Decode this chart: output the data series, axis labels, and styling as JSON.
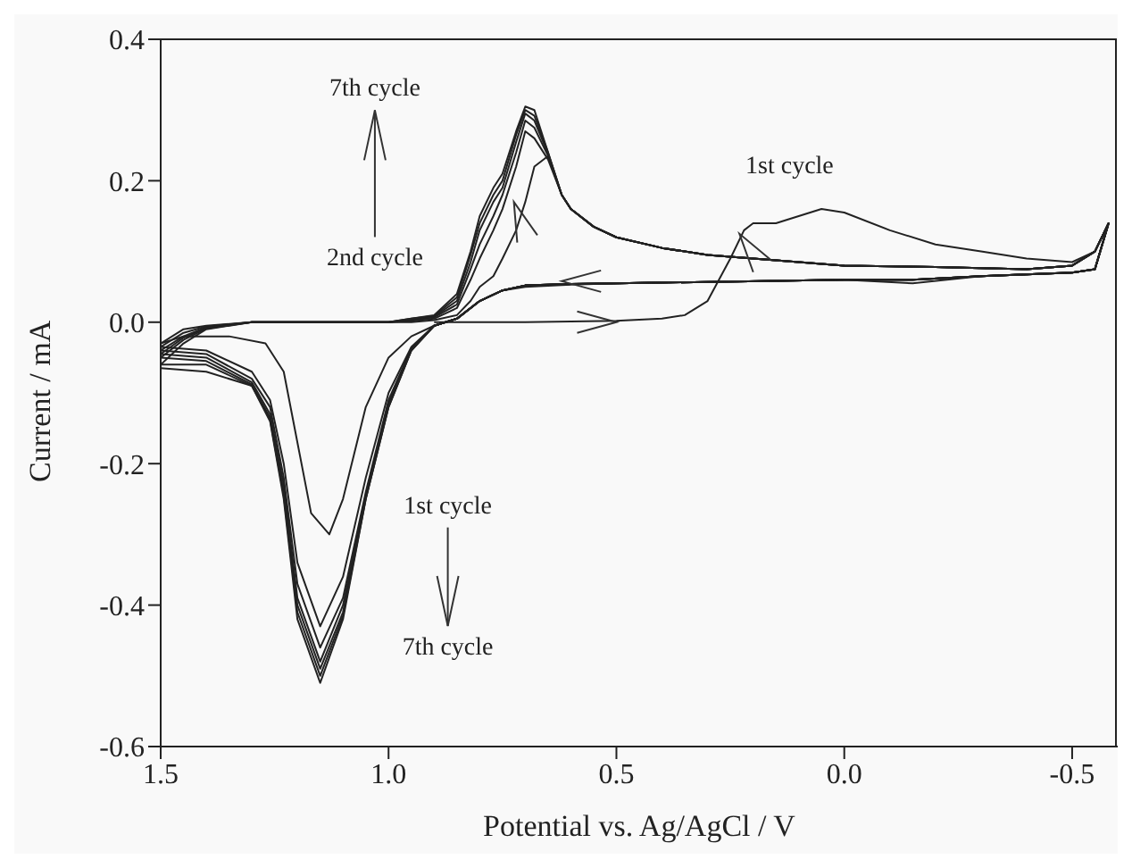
{
  "chart_data": {
    "type": "line",
    "xlabel": "Potential vs. Ag/AgCl / V",
    "ylabel": "Current / mA",
    "xlim": [
      1.5,
      -0.6
    ],
    "xticks": [
      1.5,
      {
        "value": 1.0,
        "label": "1.0"
      },
      0.5,
      {
        "value": 0.0,
        "label": "0.0"
      },
      -0.5
    ],
    "ylim": [
      -0.6,
      0.4
    ],
    "yticks": [
      -0.6,
      -0.4,
      -0.2,
      {
        "value": 0.0,
        "label": "0.0"
      },
      0.2,
      0.4
    ],
    "grid": false,
    "marker": "none",
    "line_style": "solid",
    "x": [
      1.5,
      1.45,
      1.4,
      1.3,
      1.2,
      1.0,
      0.95,
      0.9,
      0.85,
      0.82,
      0.8,
      0.77,
      0.75,
      0.72,
      0.7,
      0.68,
      0.65,
      0.62,
      0.6,
      0.55,
      0.5,
      0.4,
      0.3,
      0.2,
      0.1,
      0,
      -0.2,
      -0.4,
      -0.5,
      -0.55,
      -0.58,
      -0.55,
      -0.5,
      -0.3,
      -0.15,
      0,
      0.3,
      0.5,
      0.6,
      0.7,
      0.75,
      0.8,
      0.85,
      0.9,
      0.95,
      1.0,
      1.05,
      1.1,
      1.15,
      1.2,
      1.23,
      1.26,
      1.3,
      1.4,
      1.5
    ],
    "series": [
      {
        "color": "#222222",
        "x": [
          0.9,
          0.7,
          0.5,
          0.4,
          0.35,
          0.3,
          0.25,
          0.22,
          0.2,
          0.15,
          0.1,
          0.05,
          0,
          -0.1,
          -0.2,
          -0.3,
          -0.4,
          -0.5,
          -0.55,
          -0.58,
          -0.55,
          -0.5,
          -0.3,
          -0.15,
          0,
          0.3,
          0.5,
          0.6,
          0.7,
          0.75,
          0.8,
          0.85,
          0.9,
          0.95,
          1.0,
          1.05,
          1.1,
          1.13,
          1.17,
          1.2,
          1.23,
          1.27,
          1.35,
          1.45,
          1.5
        ],
        "values": [
          0,
          0,
          0.002,
          0.005,
          0.01,
          0.03,
          0.09,
          0.13,
          0.14,
          0.14,
          0.15,
          0.16,
          0.155,
          0.13,
          0.11,
          0.1,
          0.09,
          0.085,
          0.1,
          0.14,
          0.075,
          0.07,
          0.065,
          0.055,
          0.06,
          0.057,
          0.055,
          0.053,
          0.05,
          0.045,
          0.03,
          0.005,
          -0.005,
          -0.02,
          -0.05,
          -0.12,
          -0.25,
          -0.3,
          -0.27,
          -0.17,
          -0.07,
          -0.03,
          -0.02,
          -0.02,
          -0.03
        ]
      },
      {
        "color": "#222222",
        "values": [
          -0.03,
          -0.01,
          -0.005,
          0,
          0,
          0,
          0,
          0.003,
          0.01,
          0.03,
          0.05,
          0.065,
          0.09,
          0.13,
          0.17,
          0.22,
          0.235,
          0.18,
          0.16,
          0.135,
          0.12,
          0.105,
          0.095,
          0.09,
          0.085,
          0.08,
          0.078,
          0.075,
          0.08,
          0.1,
          0.14,
          0.075,
          0.07,
          0.065,
          0.06,
          0.06,
          0.057,
          0.055,
          0.054,
          0.052,
          0.045,
          0.03,
          0.005,
          -0.005,
          -0.035,
          -0.1,
          -0.22,
          -0.36,
          -0.43,
          -0.34,
          -0.2,
          -0.11,
          -0.07,
          -0.04,
          -0.035
        ]
      },
      {
        "color": "#222222",
        "values": [
          -0.035,
          -0.015,
          -0.006,
          0,
          0,
          0,
          0.002,
          0.005,
          0.02,
          0.06,
          0.09,
          0.13,
          0.16,
          0.22,
          0.27,
          0.26,
          0.23,
          0.18,
          0.16,
          0.135,
          0.12,
          0.105,
          0.095,
          0.09,
          0.085,
          0.08,
          0.078,
          0.075,
          0.08,
          0.1,
          0.14,
          0.075,
          0.07,
          0.065,
          0.06,
          0.06,
          0.057,
          0.055,
          0.054,
          0.052,
          0.045,
          0.03,
          0.005,
          -0.005,
          -0.037,
          -0.11,
          -0.24,
          -0.39,
          -0.46,
          -0.37,
          -0.22,
          -0.12,
          -0.08,
          -0.045,
          -0.04
        ]
      },
      {
        "color": "#222222",
        "values": [
          -0.04,
          -0.02,
          -0.007,
          0,
          0,
          0,
          0.003,
          0.007,
          0.025,
          0.075,
          0.11,
          0.15,
          0.18,
          0.24,
          0.285,
          0.275,
          0.235,
          0.18,
          0.16,
          0.135,
          0.12,
          0.105,
          0.095,
          0.09,
          0.085,
          0.08,
          0.078,
          0.075,
          0.08,
          0.1,
          0.14,
          0.075,
          0.07,
          0.065,
          0.06,
          0.06,
          0.057,
          0.055,
          0.054,
          0.052,
          0.045,
          0.03,
          0.005,
          -0.005,
          -0.038,
          -0.115,
          -0.245,
          -0.4,
          -0.48,
          -0.39,
          -0.23,
          -0.13,
          -0.085,
          -0.05,
          -0.045
        ]
      },
      {
        "color": "#222222",
        "values": [
          -0.045,
          -0.022,
          -0.008,
          0,
          0,
          0,
          0.004,
          0.008,
          0.03,
          0.085,
          0.13,
          0.17,
          0.19,
          0.255,
          0.295,
          0.285,
          0.238,
          0.18,
          0.16,
          0.135,
          0.12,
          0.105,
          0.095,
          0.09,
          0.085,
          0.08,
          0.078,
          0.075,
          0.08,
          0.1,
          0.14,
          0.075,
          0.07,
          0.065,
          0.06,
          0.06,
          0.057,
          0.055,
          0.054,
          0.052,
          0.045,
          0.03,
          0.005,
          -0.005,
          -0.039,
          -0.118,
          -0.248,
          -0.41,
          -0.49,
          -0.4,
          -0.24,
          -0.135,
          -0.088,
          -0.055,
          -0.05
        ]
      },
      {
        "color": "#222222",
        "values": [
          -0.05,
          -0.025,
          -0.009,
          0,
          0,
          0,
          0.005,
          0.009,
          0.035,
          0.095,
          0.14,
          0.18,
          0.2,
          0.265,
          0.3,
          0.292,
          0.24,
          0.18,
          0.16,
          0.135,
          0.12,
          0.105,
          0.095,
          0.09,
          0.085,
          0.08,
          0.078,
          0.075,
          0.08,
          0.1,
          0.14,
          0.075,
          0.07,
          0.065,
          0.06,
          0.06,
          0.057,
          0.055,
          0.054,
          0.052,
          0.045,
          0.03,
          0.005,
          -0.005,
          -0.04,
          -0.12,
          -0.25,
          -0.415,
          -0.5,
          -0.41,
          -0.245,
          -0.138,
          -0.09,
          -0.06,
          -0.06
        ]
      },
      {
        "color": "#222222",
        "values": [
          -0.06,
          -0.03,
          -0.01,
          0,
          0,
          0,
          0.005,
          0.01,
          0.04,
          0.1,
          0.15,
          0.19,
          0.21,
          0.27,
          0.305,
          0.3,
          0.24,
          0.18,
          0.16,
          0.135,
          0.12,
          0.105,
          0.095,
          0.09,
          0.085,
          0.08,
          0.078,
          0.075,
          0.08,
          0.1,
          0.14,
          0.075,
          0.07,
          0.065,
          0.06,
          0.06,
          0.057,
          0.055,
          0.054,
          0.052,
          0.045,
          0.03,
          0.005,
          -0.005,
          -0.04,
          -0.12,
          -0.25,
          -0.42,
          -0.51,
          -0.42,
          -0.25,
          -0.14,
          -0.09,
          -0.07,
          -0.065
        ]
      }
    ],
    "annotations": [
      "7th cycle",
      "2nd cycle",
      "1st cycle",
      "1st cycle",
      "7th cycle"
    ]
  }
}
